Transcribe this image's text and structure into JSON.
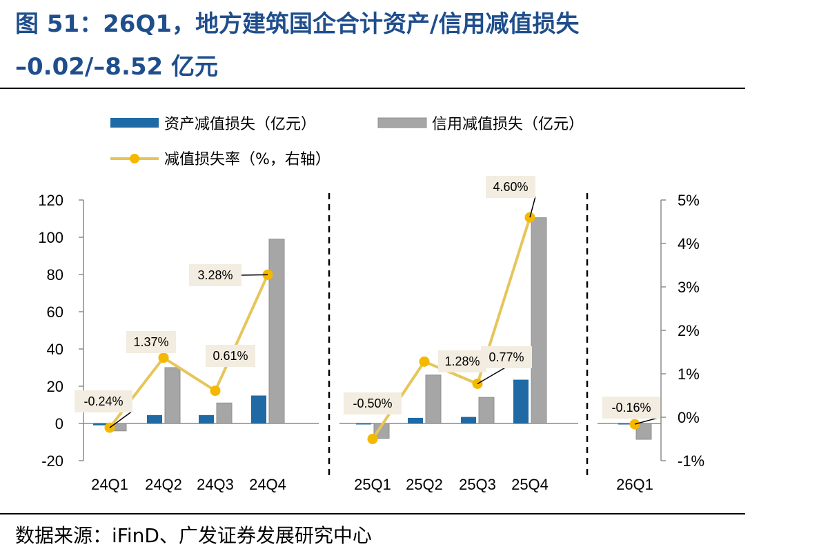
{
  "title": {
    "line1": "图 51：26Q1，地方建筑国企合计资产/信用减值损失",
    "line2": "–0.02/–8.52 亿元"
  },
  "source": "数据来源：iFinD、广发证券发展研究中心",
  "colors": {
    "title": "#1f4e8c",
    "asset_bar": "#1f6aa5",
    "credit_bar": "#a6a6a6",
    "rate_line": "#e6c55a",
    "rate_marker": "#f5b800",
    "label_box": "#f2ede0"
  },
  "chart_data": {
    "type": "bar",
    "categories": [
      "24Q1",
      "24Q2",
      "24Q3",
      "24Q4",
      "25Q1",
      "25Q2",
      "25Q3",
      "25Q4",
      "26Q1"
    ],
    "series": [
      {
        "name": "资产减值损失（亿元）",
        "type": "bar",
        "axis": "left",
        "values": [
          -1.0,
          4.5,
          4.5,
          15.0,
          -0.5,
          3.0,
          3.5,
          23.5,
          -0.02
        ]
      },
      {
        "name": "信用减值损失（亿元）",
        "type": "bar",
        "axis": "left",
        "values": [
          -4.0,
          30.0,
          11.0,
          99.0,
          -8.0,
          26.0,
          14.0,
          110.5,
          -8.52
        ]
      },
      {
        "name": "减值损失率（%，右轴）",
        "type": "line",
        "axis": "right",
        "values": [
          -0.24,
          1.37,
          0.61,
          3.28,
          -0.5,
          1.28,
          0.77,
          4.6,
          -0.16
        ],
        "labels": [
          "-0.24%",
          "1.37%",
          "0.61%",
          "3.28%",
          "-0.50%",
          "1.28%",
          "0.77%",
          "4.60%",
          "-0.16%"
        ]
      }
    ],
    "groups": [
      [
        "24Q1",
        "24Q2",
        "24Q3",
        "24Q4"
      ],
      [
        "25Q1",
        "25Q2",
        "25Q3",
        "25Q4"
      ],
      [
        "26Q1"
      ]
    ],
    "y_left": {
      "ylim": [
        -20,
        120
      ],
      "ticks": [
        -20,
        0,
        20,
        40,
        60,
        80,
        100,
        120
      ],
      "tick_labels": [
        "-20",
        "0",
        "20",
        "40",
        "60",
        "80",
        "100",
        "120"
      ]
    },
    "y_right": {
      "ylim": [
        -1,
        5
      ],
      "ticks": [
        -1,
        0,
        1,
        2,
        3,
        4,
        5
      ],
      "tick_labels": [
        "-1%",
        "0%",
        "1%",
        "2%",
        "3%",
        "4%",
        "5%"
      ]
    },
    "grid": false,
    "legend_position": "top-left"
  }
}
